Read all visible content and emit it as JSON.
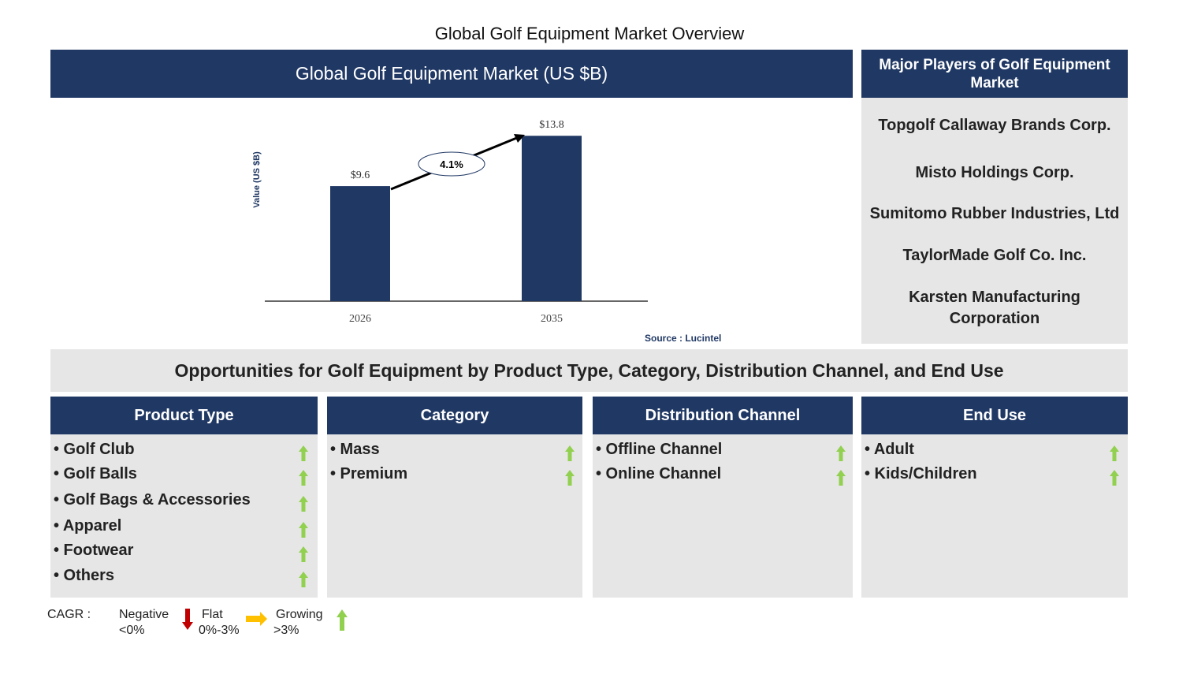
{
  "title": "Global Golf Equipment Market Overview",
  "chart_header": "Global Golf Equipment Market (US $B)",
  "chart_data": {
    "type": "bar",
    "categories": [
      "2026",
      "2035"
    ],
    "values": [
      9.6,
      13.8
    ],
    "data_labels": [
      "$9.6",
      "$13.8"
    ],
    "ylabel": "Value (US $B)",
    "cagr_label": "4.1%",
    "bar_color": "#203864",
    "grid": false
  },
  "source": "Source : Lucintel",
  "players": {
    "header": "Major Players of Golf Equipment Market",
    "items": [
      "Topgolf Callaway Brands Corp.",
      "Misto Holdings Corp.",
      "Sumitomo Rubber Industries, Ltd",
      "TaylorMade Golf Co. Inc.",
      "Karsten Manufacturing Corporation"
    ]
  },
  "opportunities": "Opportunities for Golf Equipment by Product Type, Category, Distribution Channel, and End Use",
  "columns": [
    {
      "header": "Product Type",
      "items": [
        "• Golf Club",
        "• Golf Balls",
        "• Golf Bags & Accessories",
        "• Apparel",
        "• Footwear",
        "• Others"
      ]
    },
    {
      "header": "Category",
      "items": [
        "• Mass",
        "• Premium"
      ]
    },
    {
      "header": "Distribution Channel",
      "items": [
        "• Offline Channel",
        "• Online Channel"
      ]
    },
    {
      "header": "End Use",
      "items": [
        "• Adult",
        "• Kids/Children"
      ]
    }
  ],
  "trend_icon": "green-up-arrow",
  "legend": {
    "label": "CAGR :",
    "negative": "Negative",
    "negative_range": "<0%",
    "flat": "Flat",
    "flat_range": "0%-3%",
    "growing": "Growing",
    "growing_range": ">3%",
    "colors": {
      "negative": "#c00000",
      "flat": "#ffc000",
      "growing": "#92d050"
    }
  }
}
